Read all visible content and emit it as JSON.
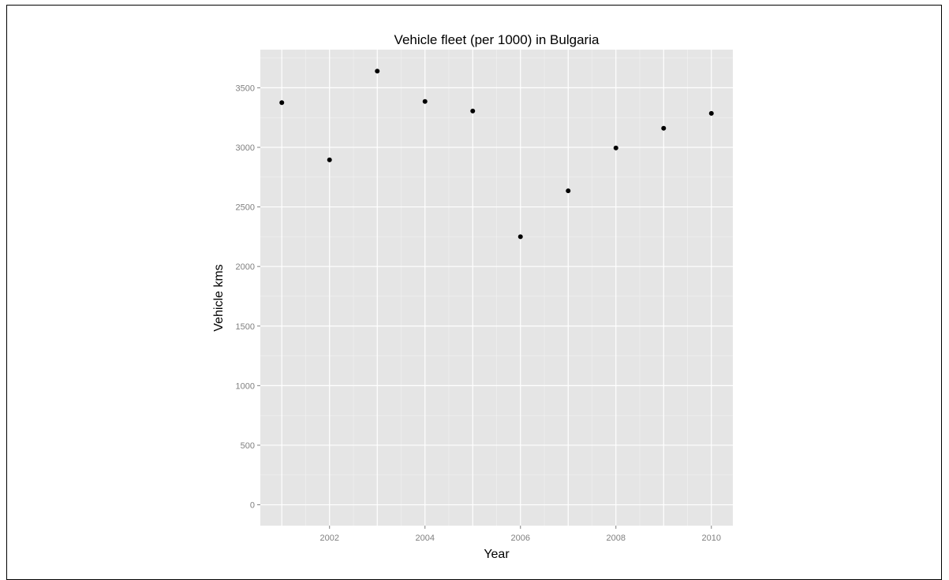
{
  "chart_data": {
    "type": "scatter",
    "title": "Vehicle fleet (per 1000) in Bulgaria",
    "xlabel": "Year",
    "ylabel": "Vehicle kms",
    "x": [
      2001,
      2002,
      2003,
      2004,
      2005,
      2006,
      2007,
      2008,
      2009,
      2010
    ],
    "y": [
      3375,
      2895,
      3640,
      3385,
      3305,
      2250,
      2635,
      2995,
      3160,
      3285
    ],
    "xlim": [
      2000.55,
      2010.45
    ],
    "ylim": [
      -175,
      3820
    ],
    "xticks": [
      2002,
      2004,
      2006,
      2008,
      2010
    ],
    "yticks": [
      0,
      500,
      1000,
      1500,
      2000,
      2500,
      3000,
      3500
    ],
    "grid": true,
    "colors": {
      "panel": "#e5e5e5",
      "grid_major": "#ffffff",
      "grid_minor": "#f2f2f2",
      "point": "#000000",
      "tick_text": "#7f7f7f"
    }
  }
}
